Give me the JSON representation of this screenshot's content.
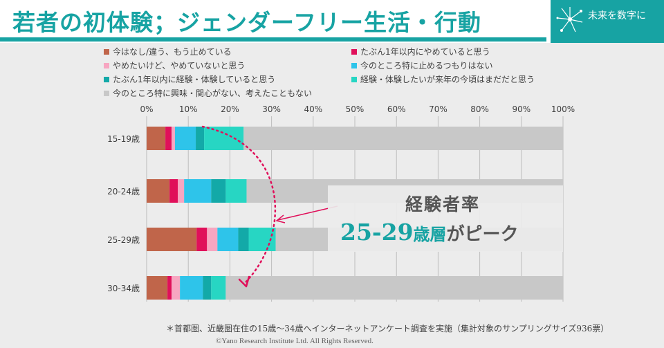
{
  "header": {
    "title": "若者の初体験；ジェンダーフリー生活・行動",
    "brand_text": "未来を数字に"
  },
  "legend": [
    {
      "label": "今はなし/違う、もう止めている",
      "color": "#c0654a"
    },
    {
      "label": "たぶん1年以内にやめていると思う",
      "color": "#e0105a"
    },
    {
      "label": "やめたいけど、やめていないと思う",
      "color": "#f7a6c1"
    },
    {
      "label": "今のところ特に止めるつもりはない",
      "color": "#2ec4ea"
    },
    {
      "label": "たぶん1年以内に経験・体験していると思う",
      "color": "#13a9a8"
    },
    {
      "label": "経験・体験したいが来年の今頃はまだだと思う",
      "color": "#27d6c3"
    },
    {
      "label": "今のところ特に興味・関心がない、考えたこともない",
      "color": "#c8c8c8"
    }
  ],
  "chart_data": {
    "type": "bar",
    "orientation": "horizontal",
    "stacked": true,
    "categories": [
      "15-19歳",
      "20-24歳",
      "25-29歳",
      "30-34歳"
    ],
    "xaxis": {
      "min": 0,
      "max": 100,
      "ticks": [
        "0%",
        "10%",
        "20%",
        "30%",
        "40%",
        "50%",
        "60%",
        "70%",
        "80%",
        "90%",
        "100%"
      ]
    },
    "series": [
      {
        "name": "今はなし/違う、もう止めている",
        "color": "#c0654a",
        "values": [
          4.5,
          5.5,
          12,
          5
        ]
      },
      {
        "name": "たぶん1年以内にやめていると思う",
        "color": "#e0105a",
        "values": [
          1.5,
          2,
          2.5,
          1
        ]
      },
      {
        "name": "やめたいけど、やめていないと思う",
        "color": "#f7a6c1",
        "values": [
          0.8,
          1.5,
          2.5,
          2
        ]
      },
      {
        "name": "今のところ特に止めるつもりはない",
        "color": "#2ec4ea",
        "values": [
          5,
          6.5,
          5,
          5.5
        ]
      },
      {
        "name": "たぶん1年以内に経験・体験していると思う",
        "color": "#13a9a8",
        "values": [
          2,
          3.5,
          2.5,
          2
        ]
      },
      {
        "name": "経験・体験したいが来年の今頃はまだだと思う",
        "color": "#27d6c3",
        "values": [
          9.5,
          5,
          6.5,
          3.5
        ]
      },
      {
        "name": "今のところ特に興味・関心がない、考えたこともない",
        "color": "#c8c8c8",
        "values": [
          76.7,
          76,
          69,
          81
        ]
      }
    ]
  },
  "callout": {
    "line1": "経験者率",
    "age": "25-29",
    "unit": "歳層",
    "rest": "がピーク",
    "arrow_color": "#e0105a"
  },
  "footer": {
    "note": "＊首都圏、近畿圏在住の15歳～34歳へインターネットアンケート調査を実施（集計対象のサンプリングサイズ936票）",
    "copyright": "©Yano Research Institute Ltd. All Rights Reserved."
  }
}
